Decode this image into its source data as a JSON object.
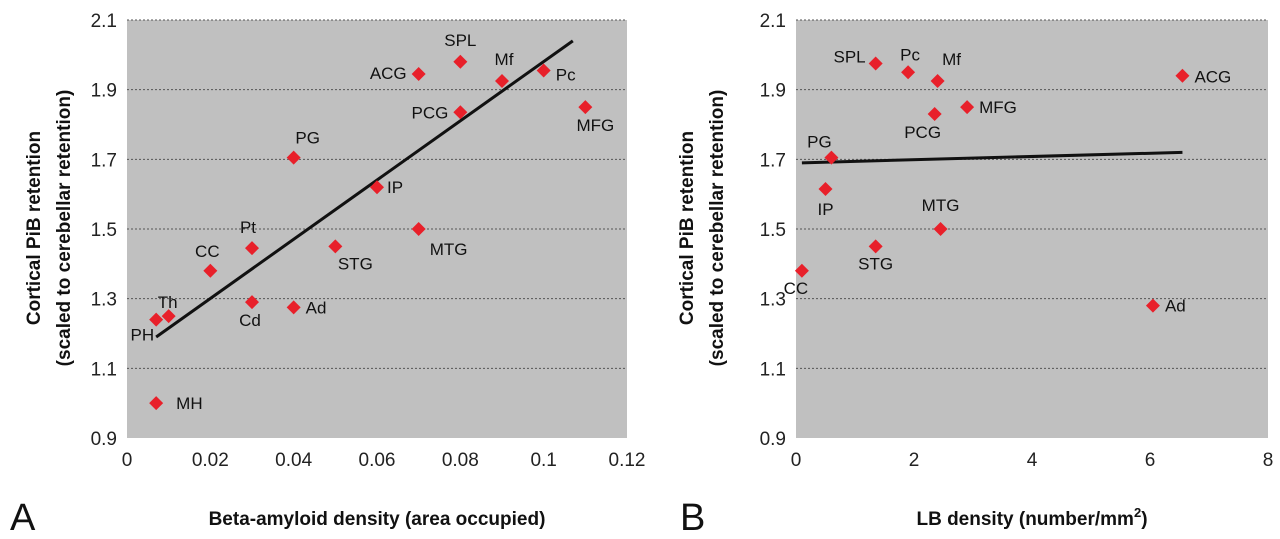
{
  "chart_data": [
    {
      "type": "scatter",
      "panel_letter": "A",
      "xlabel": "Beta-amyloid density (area occupied)",
      "ylabel_line1": "Cortical PiB retention",
      "ylabel_line2": "(scaled to cerebellar retention)",
      "xlim": [
        0,
        0.12
      ],
      "ylim": [
        0.9,
        2.1
      ],
      "xticks": [
        "0",
        "0.02",
        "0.04",
        "0.06",
        "0.08",
        "0.1",
        "0.12"
      ],
      "yticks": [
        "0.9",
        "1.1",
        "1.3",
        "1.5",
        "1.7",
        "1.9",
        "2.1"
      ],
      "grid": "horizontal dotted",
      "background": "#c0c0c0",
      "marker_color": "#e8202a",
      "points": [
        {
          "label": "MH",
          "x": 0.007,
          "y": 1.0
        },
        {
          "label": "PH",
          "x": 0.007,
          "y": 1.24
        },
        {
          "label": "Th",
          "x": 0.01,
          "y": 1.25
        },
        {
          "label": "CC",
          "x": 0.02,
          "y": 1.38
        },
        {
          "label": "Pt",
          "x": 0.03,
          "y": 1.445
        },
        {
          "label": "Cd",
          "x": 0.03,
          "y": 1.29
        },
        {
          "label": "Ad",
          "x": 0.04,
          "y": 1.275
        },
        {
          "label": "PG",
          "x": 0.04,
          "y": 1.705
        },
        {
          "label": "STG",
          "x": 0.05,
          "y": 1.45
        },
        {
          "label": "IP",
          "x": 0.06,
          "y": 1.62
        },
        {
          "label": "MTG",
          "x": 0.07,
          "y": 1.5
        },
        {
          "label": "ACG",
          "x": 0.07,
          "y": 1.945
        },
        {
          "label": "PCG",
          "x": 0.08,
          "y": 1.835
        },
        {
          "label": "SPL",
          "x": 0.08,
          "y": 1.98
        },
        {
          "label": "Mf",
          "x": 0.09,
          "y": 1.925
        },
        {
          "label": "Pc",
          "x": 0.1,
          "y": 1.955
        },
        {
          "label": "MFG",
          "x": 0.11,
          "y": 1.85
        }
      ],
      "trendline": {
        "x": [
          0.007,
          0.107
        ],
        "y": [
          1.19,
          2.04
        ]
      }
    },
    {
      "type": "scatter",
      "panel_letter": "B",
      "xlabel": "LB density (number/mm",
      "xlabel_sup": "2",
      "xlabel_end": ")",
      "ylabel_line1": "Cortical PiB retention",
      "ylabel_line2": "(scaled to cerebellar retention)",
      "xlim": [
        0,
        8
      ],
      "ylim": [
        0.9,
        2.1
      ],
      "xticks": [
        "0",
        "2",
        "4",
        "6",
        "8"
      ],
      "yticks": [
        "0.9",
        "1.1",
        "1.3",
        "1.5",
        "1.7",
        "1.9",
        "2.1"
      ],
      "grid": "horizontal dotted",
      "background": "#c0c0c0",
      "marker_color": "#e8202a",
      "points": [
        {
          "label": "CC",
          "x": 0.1,
          "y": 1.38
        },
        {
          "label": "IP",
          "x": 0.5,
          "y": 1.615
        },
        {
          "label": "PG",
          "x": 0.6,
          "y": 1.705
        },
        {
          "label": "STG",
          "x": 1.35,
          "y": 1.45
        },
        {
          "label": "SPL",
          "x": 1.35,
          "y": 1.975
        },
        {
          "label": "Pc",
          "x": 1.9,
          "y": 1.95
        },
        {
          "label": "PCG",
          "x": 2.35,
          "y": 1.83
        },
        {
          "label": "Mf",
          "x": 2.4,
          "y": 1.925
        },
        {
          "label": "MTG",
          "x": 2.45,
          "y": 1.5
        },
        {
          "label": "MFG",
          "x": 2.9,
          "y": 1.85
        },
        {
          "label": "Ad",
          "x": 6.05,
          "y": 1.28
        },
        {
          "label": "ACG",
          "x": 6.55,
          "y": 1.94
        }
      ],
      "trendline": {
        "x": [
          0.1,
          6.55
        ],
        "y": [
          1.69,
          1.72
        ]
      }
    }
  ]
}
